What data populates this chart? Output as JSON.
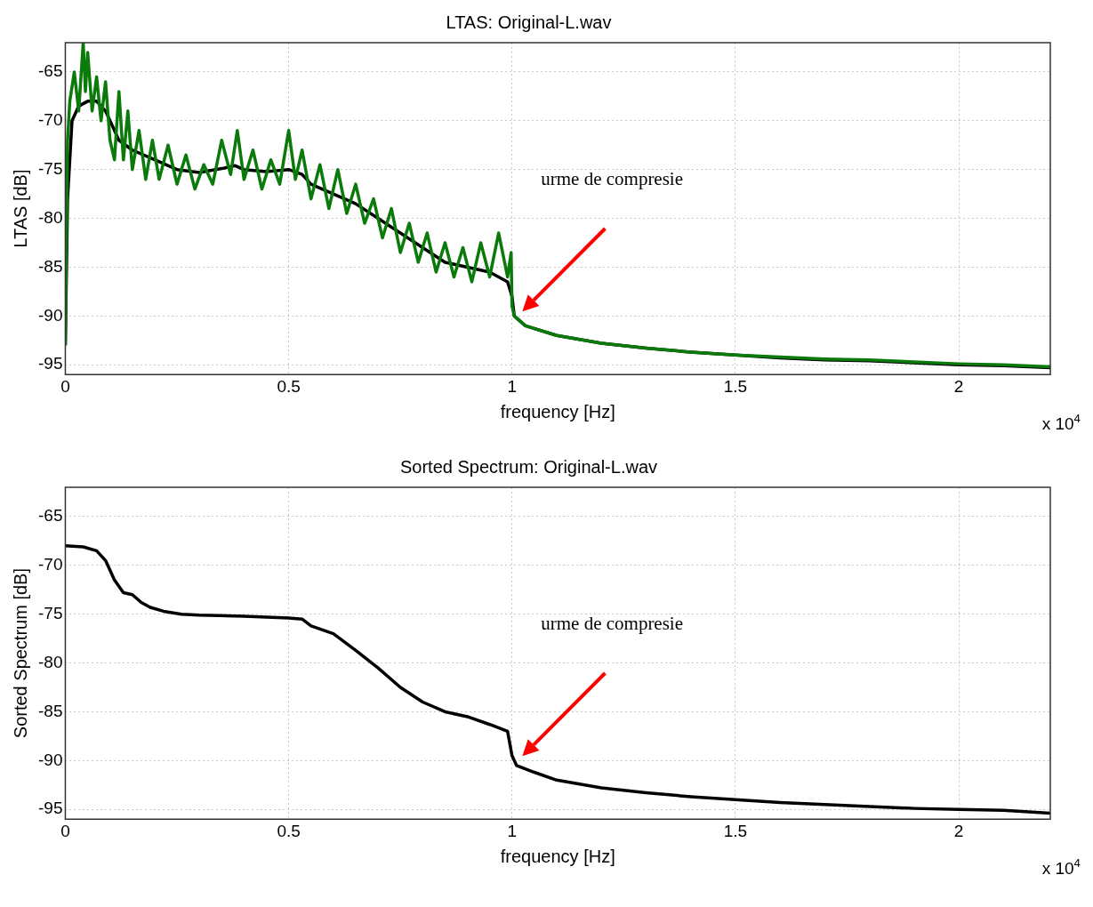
{
  "chart_data": [
    {
      "type": "line",
      "title": "LTAS: Original-L.wav",
      "xlabel": "frequency [Hz]",
      "ylabel": "LTAS [dB]",
      "xlim": [
        0,
        2.205
      ],
      "xticks": [
        0,
        0.5,
        1,
        1.5,
        2
      ],
      "ylim": [
        -96,
        -62
      ],
      "yticks": [
        -95,
        -90,
        -85,
        -80,
        -75,
        -70,
        -65
      ],
      "grid": true,
      "legend": false,
      "marker": "none",
      "line_style": "solid",
      "annotations": [
        "urme de compresie",
        "x 10$^{4}$"
      ],
      "series": [
        {
          "color": "#0a7a0a",
          "x": [
            0,
            0.005,
            0.01,
            0.02,
            0.03,
            0.04,
            0.045,
            0.05,
            0.06,
            0.07,
            0.08,
            0.09,
            0.1,
            0.11,
            0.12,
            0.13,
            0.14,
            0.15,
            0.165,
            0.18,
            0.195,
            0.21,
            0.23,
            0.25,
            0.27,
            0.29,
            0.31,
            0.33,
            0.35,
            0.37,
            0.385,
            0.4,
            0.42,
            0.44,
            0.46,
            0.48,
            0.5,
            0.515,
            0.53,
            0.55,
            0.57,
            0.59,
            0.61,
            0.63,
            0.65,
            0.67,
            0.69,
            0.71,
            0.73,
            0.75,
            0.77,
            0.79,
            0.81,
            0.83,
            0.85,
            0.87,
            0.89,
            0.91,
            0.93,
            0.95,
            0.97,
            0.99,
            0.998,
            1,
            1.005,
            1.03,
            1.1,
            1.2,
            1.3,
            1.4,
            1.5,
            1.6,
            1.7,
            1.8,
            1.9,
            2,
            2.1,
            2.205
          ],
          "values": [
            -93,
            -72,
            -68,
            -65,
            -69,
            -62,
            -67,
            -63,
            -69,
            -65.5,
            -70,
            -66,
            -72,
            -74,
            -67,
            -74,
            -69,
            -75,
            -71,
            -76,
            -72,
            -76,
            -72.5,
            -76.5,
            -73.5,
            -77,
            -74.5,
            -76.5,
            -72,
            -75.5,
            -71,
            -76,
            -73,
            -77,
            -74,
            -76.5,
            -71,
            -76,
            -73,
            -78,
            -74.5,
            -79,
            -75,
            -79.5,
            -76.5,
            -80.5,
            -78,
            -82,
            -79,
            -83.5,
            -80.5,
            -84.5,
            -81.5,
            -85.5,
            -82.5,
            -86,
            -83,
            -86.5,
            -82.5,
            -86,
            -81.5,
            -86,
            -83.5,
            -89,
            -90,
            -91,
            -92,
            -92.8,
            -93.3,
            -93.7,
            -94,
            -94.2,
            -94.4,
            -94.5,
            -94.7,
            -94.9,
            -95,
            -95.2
          ]
        },
        {
          "color": "#000000",
          "x": [
            0,
            0.005,
            0.015,
            0.03,
            0.05,
            0.07,
            0.09,
            0.12,
            0.15,
            0.2,
            0.25,
            0.3,
            0.35,
            0.38,
            0.4,
            0.45,
            0.5,
            0.53,
            0.55,
            0.6,
            0.65,
            0.7,
            0.75,
            0.8,
            0.85,
            0.9,
            0.95,
            0.99,
            1,
            1.005,
            1.03,
            1.1,
            1.2,
            1.3,
            1.4,
            1.5,
            1.6,
            1.7,
            1.8,
            1.9,
            2,
            2.1,
            2.205
          ],
          "values": [
            -93,
            -78,
            -70,
            -68.5,
            -68,
            -68,
            -69,
            -72,
            -73,
            -74,
            -75,
            -75.3,
            -74.9,
            -74.6,
            -75,
            -75.2,
            -75,
            -75.5,
            -76.5,
            -77.5,
            -78.5,
            -80,
            -81.5,
            -83,
            -84.5,
            -85,
            -85.5,
            -86.5,
            -88,
            -90,
            -91,
            -92,
            -92.8,
            -93.3,
            -93.7,
            -94,
            -94.3,
            -94.5,
            -94.6,
            -94.8,
            -95,
            -95.1,
            -95.3
          ]
        }
      ]
    },
    {
      "type": "line",
      "title": "Sorted Spectrum: Original-L.wav",
      "xlabel": "frequency [Hz]",
      "ylabel": "Sorted Spectrum [dB]",
      "xlim": [
        0,
        2.205
      ],
      "xticks": [
        0,
        0.5,
        1,
        1.5,
        2
      ],
      "ylim": [
        -96,
        -62
      ],
      "yticks": [
        -95,
        -90,
        -85,
        -80,
        -75,
        -70,
        -65
      ],
      "grid": true,
      "legend": false,
      "marker": "none",
      "line_style": "solid",
      "annotations": [
        "urme de compresie",
        "x 10$^{4}$"
      ],
      "series": [
        {
          "color": "#000000",
          "x": [
            0,
            0.04,
            0.07,
            0.09,
            0.11,
            0.13,
            0.15,
            0.17,
            0.19,
            0.22,
            0.26,
            0.3,
            0.4,
            0.5,
            0.53,
            0.55,
            0.6,
            0.65,
            0.7,
            0.75,
            0.8,
            0.85,
            0.9,
            0.95,
            0.99,
            1,
            1.01,
            1.05,
            1.1,
            1.2,
            1.3,
            1.4,
            1.5,
            1.6,
            1.7,
            1.8,
            1.9,
            2,
            2.1,
            2.205
          ],
          "values": [
            -68,
            -68.1,
            -68.5,
            -69.5,
            -71.5,
            -72.8,
            -73,
            -73.8,
            -74.3,
            -74.7,
            -75,
            -75.1,
            -75.2,
            -75.4,
            -75.5,
            -76.2,
            -77,
            -78.7,
            -80.5,
            -82.5,
            -84,
            -85,
            -85.5,
            -86.3,
            -87,
            -89.5,
            -90.5,
            -91.2,
            -92,
            -92.8,
            -93.3,
            -93.7,
            -94,
            -94.3,
            -94.5,
            -94.7,
            -94.9,
            -95,
            -95.1,
            -95.4
          ]
        }
      ]
    }
  ]
}
